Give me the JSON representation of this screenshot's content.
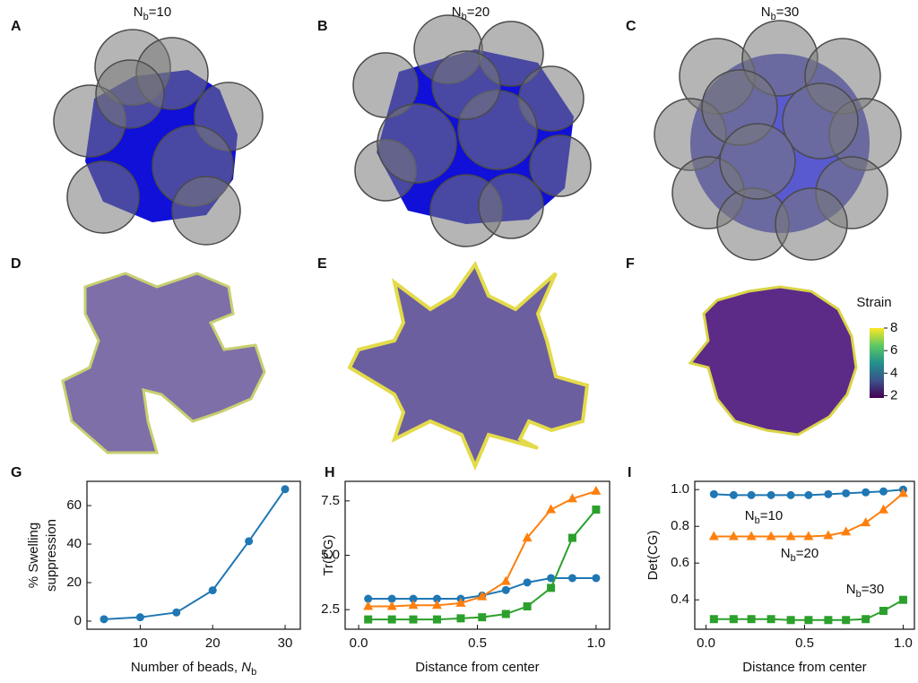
{
  "panel_labels": [
    "A",
    "B",
    "C",
    "D",
    "E",
    "F",
    "G",
    "H",
    "I"
  ],
  "titles": [
    {
      "text": "N",
      "sub": "b",
      "rest": "=10"
    },
    {
      "text": "N",
      "sub": "b",
      "rest": "=20"
    },
    {
      "text": "N",
      "sub": "b",
      "rest": "=30"
    }
  ],
  "colorbar": {
    "label": "Strain",
    "lim": [
      1.8,
      8.0
    ],
    "ticks": [
      2,
      4,
      6,
      8
    ]
  },
  "chart_data": [
    {
      "type": "line",
      "ylabel": [
        "% Swelling",
        "suppression"
      ],
      "xlabel": {
        "text": "Number of beads, ",
        "sub_base": "N",
        "sub": "b"
      },
      "x": [
        5,
        10,
        15,
        20,
        25,
        30
      ],
      "xlim": [
        2.65,
        32.1
      ],
      "ylim": [
        -4.2,
        72.6
      ],
      "xticks": [
        10,
        20,
        30
      ],
      "yticks": [
        0,
        20,
        40,
        60
      ],
      "series": [
        {
          "color": "#1f77b4",
          "marker": "circle",
          "values": [
            1,
            2,
            4.5,
            16,
            41.5,
            68.5
          ]
        }
      ]
    },
    {
      "type": "line",
      "ylabel": [
        "Tr(CG)"
      ],
      "xlabel": {
        "text": "Distance from center"
      },
      "x": [
        0.04,
        0.14,
        0.23,
        0.33,
        0.43,
        0.52,
        0.62,
        0.71,
        0.81,
        0.9,
        1.0
      ],
      "xlim": [
        -0.057,
        1.057
      ],
      "ylim": [
        1.6,
        8.4
      ],
      "xticks": [
        {
          "value": 0,
          "label": "0.0"
        },
        0.5,
        {
          "value": 1,
          "label": "1.0"
        }
      ],
      "yticks": [
        2.5,
        {
          "value": 5,
          "label": "5.0"
        },
        7.5
      ],
      "series": [
        {
          "color": "#1f77b4",
          "marker": "circle",
          "values": [
            3.0,
            3.0,
            3.0,
            3.0,
            3.0,
            3.15,
            3.4,
            3.75,
            3.95,
            3.95,
            3.95
          ]
        },
        {
          "color": "#ff7f0e",
          "marker": "triangle",
          "values": [
            2.65,
            2.65,
            2.7,
            2.7,
            2.8,
            3.1,
            3.8,
            5.8,
            7.1,
            7.6,
            7.95
          ]
        },
        {
          "color": "#2ca02c",
          "marker": "square",
          "values": [
            2.05,
            2.05,
            2.05,
            2.05,
            2.1,
            2.15,
            2.3,
            2.65,
            3.5,
            5.8,
            7.1
          ]
        }
      ]
    },
    {
      "type": "line",
      "ylabel": [
        "Det(CG)"
      ],
      "xlabel": {
        "text": "Distance from center"
      },
      "x": [
        0.04,
        0.14,
        0.23,
        0.33,
        0.43,
        0.52,
        0.62,
        0.71,
        0.81,
        0.9,
        1.0
      ],
      "xlim": [
        -0.057,
        1.057
      ],
      "ylim": [
        0.24,
        1.045
      ],
      "xticks": [
        {
          "value": 0,
          "label": "0.0"
        },
        0.5,
        {
          "value": 1,
          "label": "1.0"
        }
      ],
      "yticks": [
        0.4,
        0.6,
        0.8,
        {
          "value": 1,
          "label": "1.0"
        }
      ],
      "annotations": [
        {
          "text": "N",
          "sub": "b",
          "rest": "=10"
        },
        {
          "text": "N",
          "sub": "b",
          "rest": "=20"
        },
        {
          "text": "N",
          "sub": "b",
          "rest": "=30"
        }
      ],
      "series": [
        {
          "color": "#1f77b4",
          "marker": "circle",
          "values": [
            0.975,
            0.97,
            0.97,
            0.97,
            0.97,
            0.97,
            0.975,
            0.98,
            0.985,
            0.99,
            1.0
          ]
        },
        {
          "color": "#ff7f0e",
          "marker": "triangle",
          "values": [
            0.745,
            0.745,
            0.745,
            0.745,
            0.745,
            0.745,
            0.75,
            0.77,
            0.82,
            0.89,
            0.98
          ]
        },
        {
          "color": "#2ca02c",
          "marker": "square",
          "values": [
            0.295,
            0.295,
            0.295,
            0.295,
            0.29,
            0.29,
            0.29,
            0.29,
            0.295,
            0.34,
            0.4
          ]
        }
      ]
    }
  ]
}
